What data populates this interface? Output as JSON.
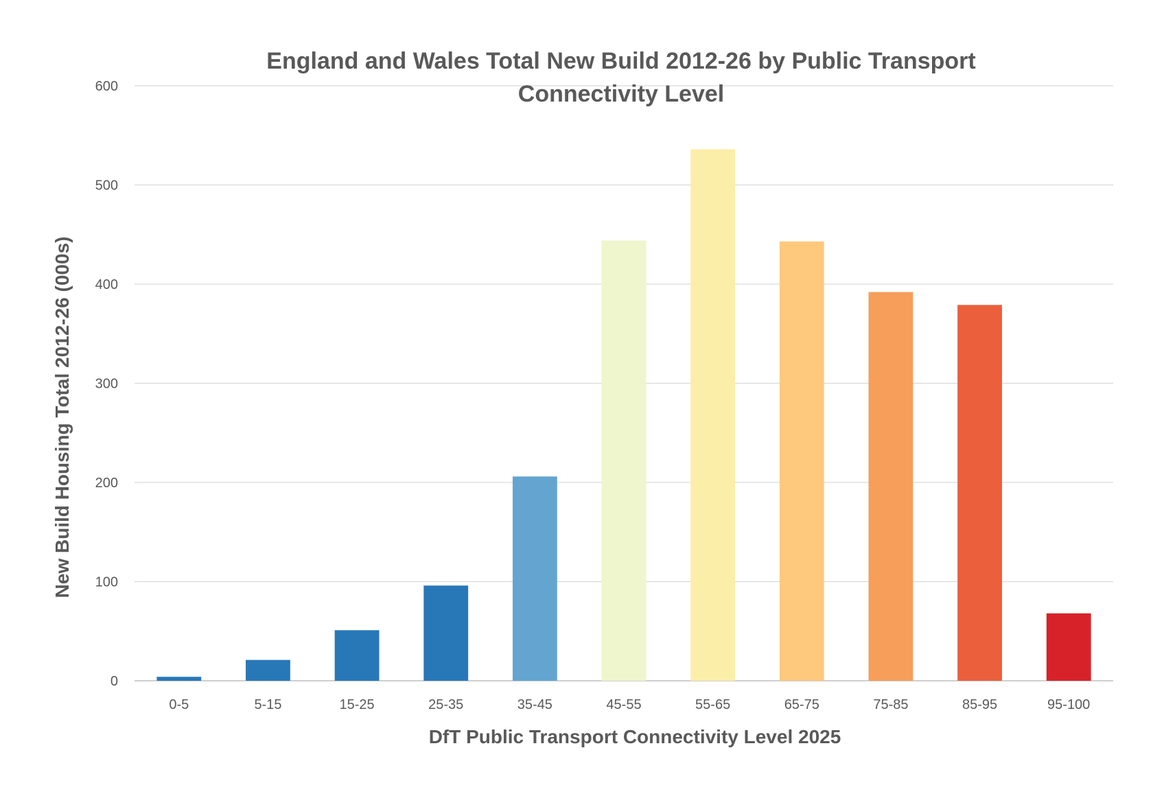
{
  "chart_data": {
    "type": "bar",
    "title_lines": [
      "England and Wales Total New Build 2012-26 by Public Transport",
      "Connectivity Level"
    ],
    "xlabel": "DfT Public Transport Connectivity Level 2025",
    "ylabel": "New Build Housing Total 2012-26  (000s)",
    "categories": [
      "0-5",
      "5-15",
      "15-25",
      "25-35",
      "35-45",
      "45-55",
      "55-65",
      "65-75",
      "75-85",
      "85-95",
      "95-100"
    ],
    "values": [
      4,
      21,
      51,
      96,
      206,
      444,
      536,
      443,
      392,
      379,
      68
    ],
    "bar_colors": [
      "#2878b8",
      "#2878b8",
      "#2878b8",
      "#2878b8",
      "#63a5d0",
      "#eff5cc",
      "#fbeea8",
      "#fec97c",
      "#f69e5a",
      "#eb5f3c",
      "#d7222a"
    ],
    "yticks": [
      0,
      100,
      200,
      300,
      400,
      500,
      600
    ],
    "ylim": [
      0,
      600
    ],
    "grid": true,
    "legend": "none"
  }
}
